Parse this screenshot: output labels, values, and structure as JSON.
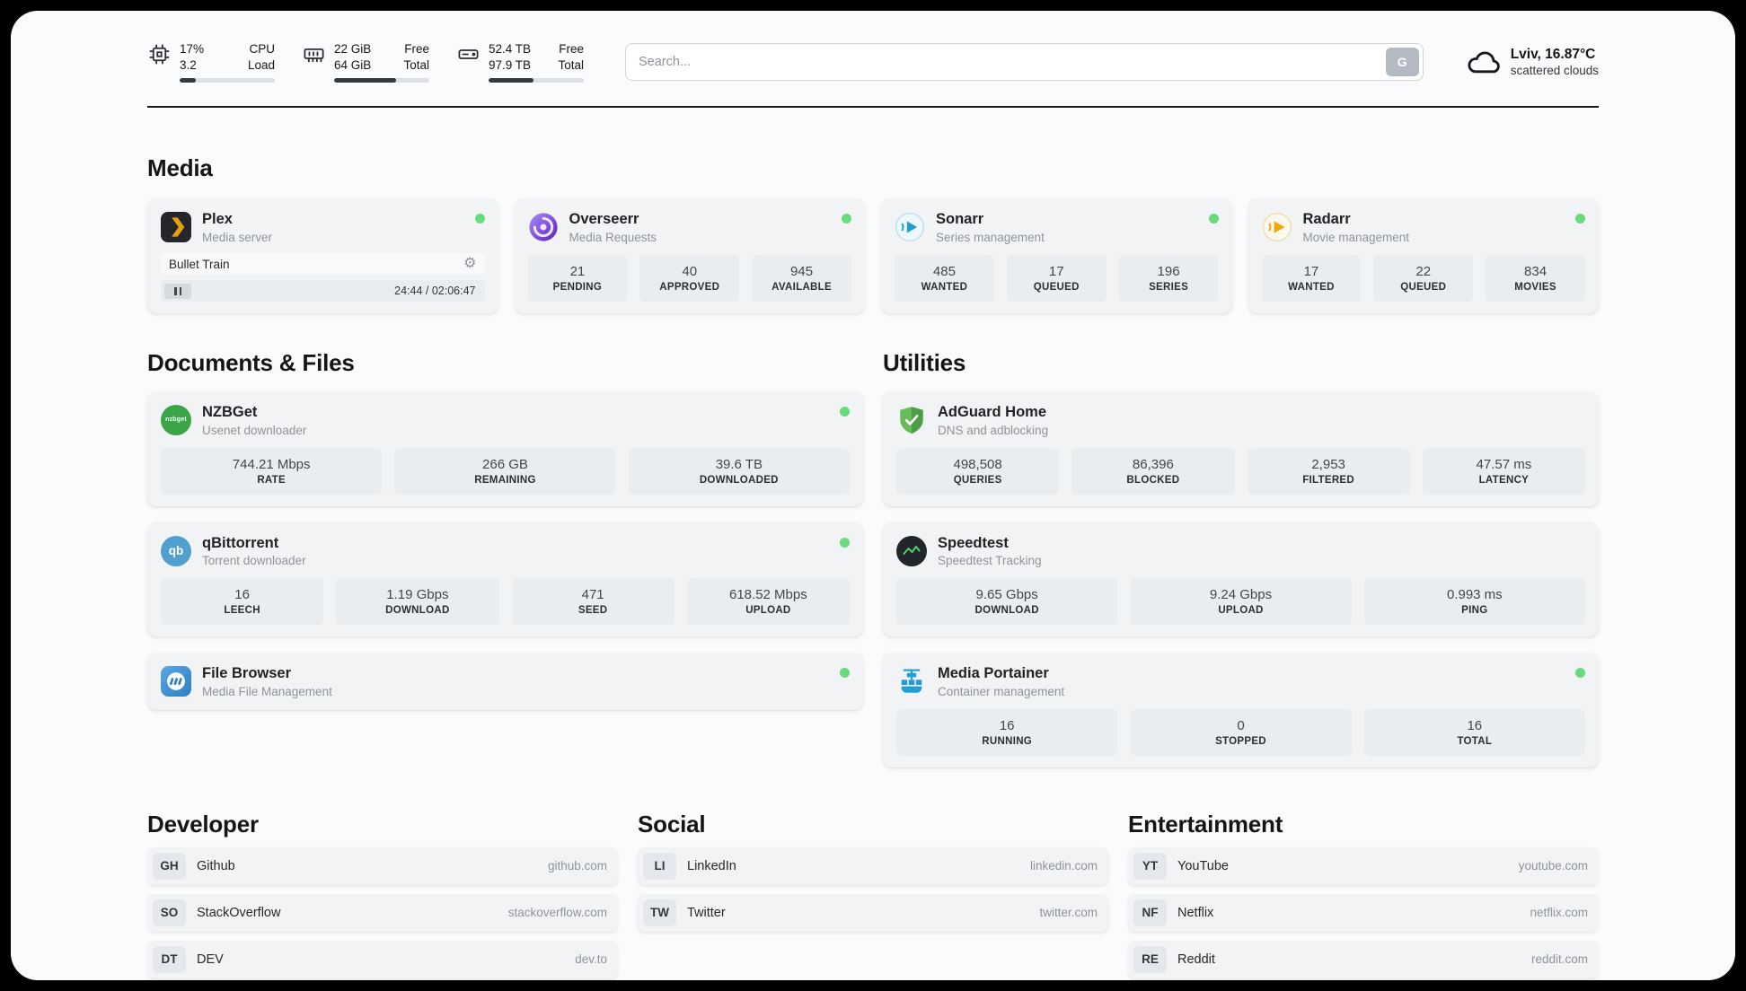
{
  "header": {
    "cpu": {
      "value_top": "17%",
      "value_bottom": "3.2",
      "label_top": "CPU",
      "label_bottom": "Load",
      "progress_pct": 17
    },
    "memory": {
      "value_top": "22 GiB",
      "value_bottom": "64 GiB",
      "label_top": "Free",
      "label_bottom": "Total",
      "progress_pct": 65
    },
    "disk": {
      "value_top": "52.4 TB",
      "value_bottom": "97.9 TB",
      "label_top": "Free",
      "label_bottom": "Total",
      "progress_pct": 47
    },
    "search": {
      "placeholder": "Search...",
      "button_label": "G"
    },
    "weather": {
      "location_temp": "Lviv, 16.87°C",
      "condition": "scattered clouds"
    }
  },
  "sections": {
    "media": {
      "title": "Media",
      "plex": {
        "name": "Plex",
        "subtitle": "Media server",
        "now_playing": "Bullet Train",
        "time": "24:44 / 02:06:47",
        "progress_pct": 19
      },
      "overseerr": {
        "name": "Overseerr",
        "subtitle": "Media Requests",
        "stats": [
          {
            "value": "21",
            "label": "PENDING"
          },
          {
            "value": "40",
            "label": "APPROVED"
          },
          {
            "value": "945",
            "label": "AVAILABLE"
          }
        ]
      },
      "sonarr": {
        "name": "Sonarr",
        "subtitle": "Series management",
        "stats": [
          {
            "value": "485",
            "label": "WANTED"
          },
          {
            "value": "17",
            "label": "QUEUED"
          },
          {
            "value": "196",
            "label": "SERIES"
          }
        ]
      },
      "radarr": {
        "name": "Radarr",
        "subtitle": "Movie management",
        "stats": [
          {
            "value": "17",
            "label": "WANTED"
          },
          {
            "value": "22",
            "label": "QUEUED"
          },
          {
            "value": "834",
            "label": "MOVIES"
          }
        ]
      }
    },
    "documents": {
      "title": "Documents & Files",
      "nzbget": {
        "name": "NZBGet",
        "subtitle": "Usenet downloader",
        "icon_text": "nzbget",
        "stats": [
          {
            "value": "744.21 Mbps",
            "label": "RATE"
          },
          {
            "value": "266 GB",
            "label": "REMAINING"
          },
          {
            "value": "39.6 TB",
            "label": "DOWNLOADED"
          }
        ]
      },
      "qbittorrent": {
        "name": "qBittorrent",
        "subtitle": "Torrent downloader",
        "icon_text": "qb",
        "stats": [
          {
            "value": "16",
            "label": "LEECH"
          },
          {
            "value": "1.19 Gbps",
            "label": "DOWNLOAD"
          },
          {
            "value": "471",
            "label": "SEED"
          },
          {
            "value": "618.52 Mbps",
            "label": "UPLOAD"
          }
        ]
      },
      "filebrowser": {
        "name": "File Browser",
        "subtitle": "Media File Management"
      }
    },
    "utilities": {
      "title": "Utilities",
      "adguard": {
        "name": "AdGuard Home",
        "subtitle": "DNS and adblocking",
        "stats": [
          {
            "value": "498,508",
            "label": "QUERIES"
          },
          {
            "value": "86,396",
            "label": "BLOCKED"
          },
          {
            "value": "2,953",
            "label": "FILTERED"
          },
          {
            "value": "47.57 ms",
            "label": "LATENCY"
          }
        ]
      },
      "speedtest": {
        "name": "Speedtest",
        "subtitle": "Speedtest Tracking",
        "stats": [
          {
            "value": "9.65 Gbps",
            "label": "DOWNLOAD"
          },
          {
            "value": "9.24 Gbps",
            "label": "UPLOAD"
          },
          {
            "value": "0.993 ms",
            "label": "PING"
          }
        ]
      },
      "portainer": {
        "name": "Media Portainer",
        "subtitle": "Container management",
        "stats": [
          {
            "value": "16",
            "label": "RUNNING"
          },
          {
            "value": "0",
            "label": "STOPPED"
          },
          {
            "value": "16",
            "label": "TOTAL"
          }
        ]
      }
    }
  },
  "bookmarks": {
    "developer": {
      "title": "Developer",
      "links": [
        {
          "badge": "GH",
          "name": "Github",
          "url": "github.com"
        },
        {
          "badge": "SO",
          "name": "StackOverflow",
          "url": "stackoverflow.com"
        },
        {
          "badge": "DT",
          "name": "DEV",
          "url": "dev.to"
        }
      ]
    },
    "social": {
      "title": "Social",
      "links": [
        {
          "badge": "LI",
          "name": "LinkedIn",
          "url": "linkedin.com"
        },
        {
          "badge": "TW",
          "name": "Twitter",
          "url": "twitter.com"
        }
      ]
    },
    "entertainment": {
      "title": "Entertainment",
      "links": [
        {
          "badge": "YT",
          "name": "YouTube",
          "url": "youtube.com"
        },
        {
          "badge": "NF",
          "name": "Netflix",
          "url": "netflix.com"
        },
        {
          "badge": "RE",
          "name": "Reddit",
          "url": "reddit.com"
        }
      ]
    }
  },
  "icons": {
    "gear": "⚙"
  },
  "colors": {
    "status_online": "#69db7c",
    "plex_yellow": "#e5a00d",
    "adguard_green": "#5aaf50",
    "portainer_blue": "#1f9fd6",
    "speedtest_wave": "#51cf66"
  }
}
